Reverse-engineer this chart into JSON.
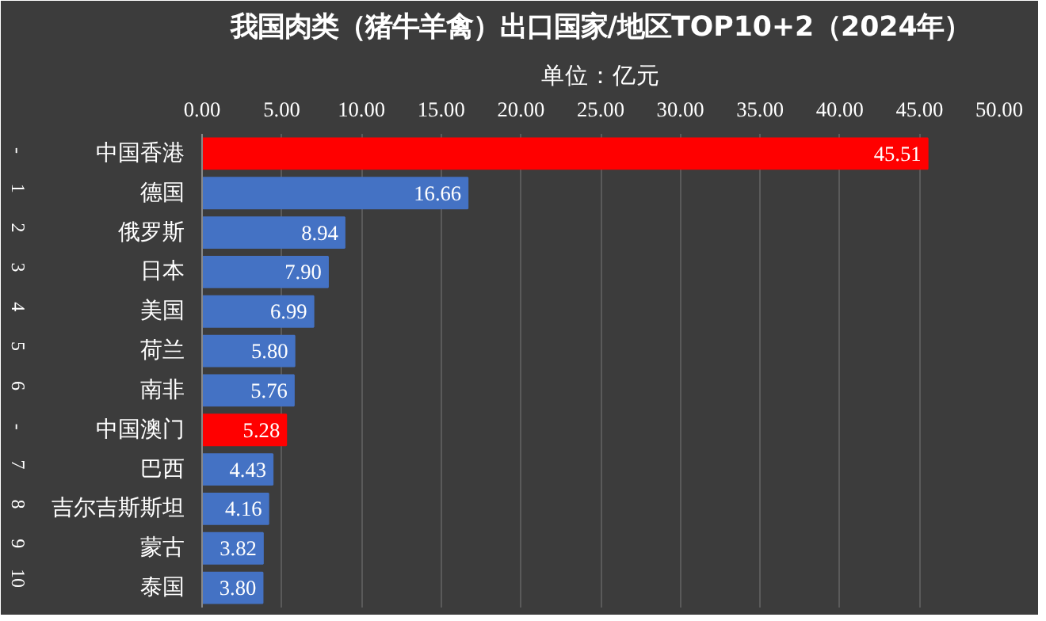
{
  "chart_data": {
    "type": "bar",
    "orientation": "horizontal",
    "title": "我国肉类（猪牛羊禽）出口国家/地区TOP10+2（2024年）",
    "subtitle": "单位：亿元",
    "categories": [
      "中国香港",
      "德国",
      "俄罗斯",
      "日本",
      "美国",
      "荷兰",
      "南非",
      "中国澳门",
      "巴西",
      "吉尔吉斯斯坦",
      "蒙古",
      "泰国"
    ],
    "values": [
      45.51,
      16.66,
      8.94,
      7.9,
      6.99,
      5.8,
      5.76,
      5.28,
      4.43,
      4.16,
      3.82,
      3.8
    ],
    "colors": [
      "#ff0000",
      "#4472c4",
      "#4472c4",
      "#4472c4",
      "#4472c4",
      "#4472c4",
      "#4472c4",
      "#ff0000",
      "#4472c4",
      "#4472c4",
      "#4472c4",
      "#4472c4"
    ],
    "value_labels": [
      "45.51",
      "16.66",
      "8.94",
      "7.90",
      "6.99",
      "5.80",
      "5.76",
      "5.28",
      "4.43",
      "4.16",
      "3.82",
      "3.80"
    ],
    "xlim": [
      0,
      50
    ],
    "xticks": [
      {
        "value": 0,
        "label": "0.00"
      },
      {
        "value": 5,
        "label": "5.00"
      },
      {
        "value": 10,
        "label": "10.00"
      },
      {
        "value": 15,
        "label": "15.00"
      },
      {
        "value": 20,
        "label": "20.00"
      },
      {
        "value": 25,
        "label": "25.00"
      },
      {
        "value": 30,
        "label": "30.00"
      },
      {
        "value": 35,
        "label": "35.00"
      },
      {
        "value": 40,
        "label": "40.00"
      },
      {
        "value": 45,
        "label": "45.00"
      },
      {
        "value": 50,
        "label": "50.00"
      }
    ],
    "grid": "x",
    "annotations": [
      "-",
      "1",
      "2",
      "3",
      "4",
      "5",
      "6",
      "-",
      "7",
      "8",
      "9",
      "10"
    ]
  }
}
